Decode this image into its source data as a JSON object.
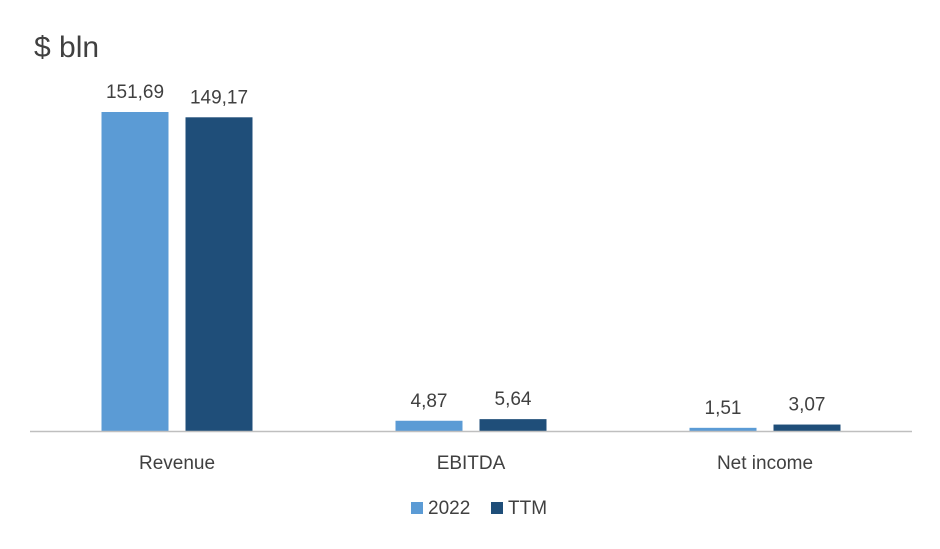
{
  "chart_data": {
    "type": "bar",
    "title": "$ bln",
    "categories": [
      "Revenue",
      "EBITDA",
      "Net income"
    ],
    "series": [
      {
        "name": "2022",
        "values": [
          151.69,
          4.87,
          1.51
        ],
        "labels": [
          "151,69",
          "4,87",
          "1,51"
        ],
        "color": "#5b9bd5"
      },
      {
        "name": "TTM",
        "values": [
          149.17,
          5.64,
          3.07
        ],
        "labels": [
          "149,17",
          "5,64",
          "3,07"
        ],
        "color": "#1f4e79"
      }
    ],
    "ylim": [
      0,
      151.69
    ],
    "grid": false,
    "legend": "bottom",
    "axis_color": "#bfbfbf"
  }
}
